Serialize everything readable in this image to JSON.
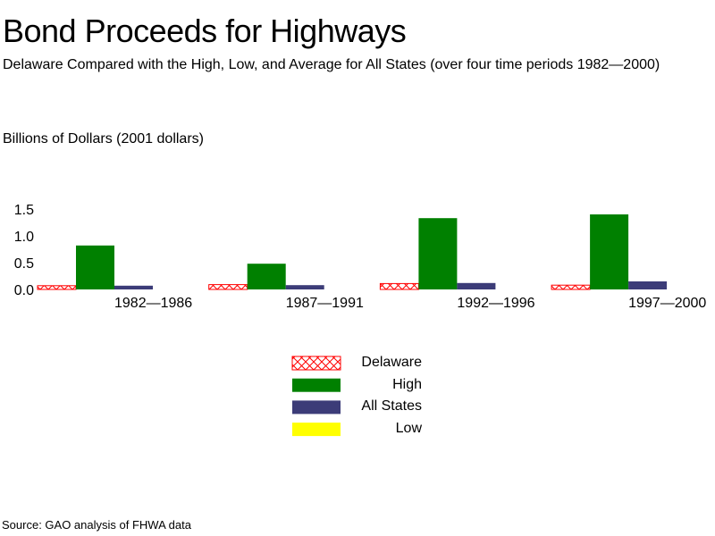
{
  "chart_data": {
    "type": "bar",
    "title": "Bond Proceeds for Highways",
    "subtitle": "Delaware Compared with the High, Low, and Average for All States (over four time periods 1982—2000)",
    "ylabel": "Billions of Dollars (2001 dollars)",
    "xlabel": "",
    "ylim": [
      0,
      1.5
    ],
    "yticks": [
      "0.0",
      "0.5",
      "1.0",
      "1.5"
    ],
    "categories": [
      "1982—1986",
      "1987—1991",
      "1992—1996",
      "1997—2000"
    ],
    "series": [
      {
        "name": "Delaware",
        "color": "#ff0000",
        "pattern": "crosshatch",
        "values": [
          0.07,
          0.09,
          0.11,
          0.08
        ]
      },
      {
        "name": "High",
        "color": "#008000",
        "values": [
          0.82,
          0.48,
          1.33,
          1.4
        ]
      },
      {
        "name": "All States",
        "color": "#3c3c78",
        "values": [
          0.07,
          0.08,
          0.12,
          0.15
        ]
      },
      {
        "name": "Low",
        "color": "#ffff00",
        "values": [
          0,
          0,
          0,
          0
        ]
      }
    ],
    "grid": false,
    "legend_position": "bottom-center",
    "source": "Source: GAO analysis of FHWA data"
  }
}
